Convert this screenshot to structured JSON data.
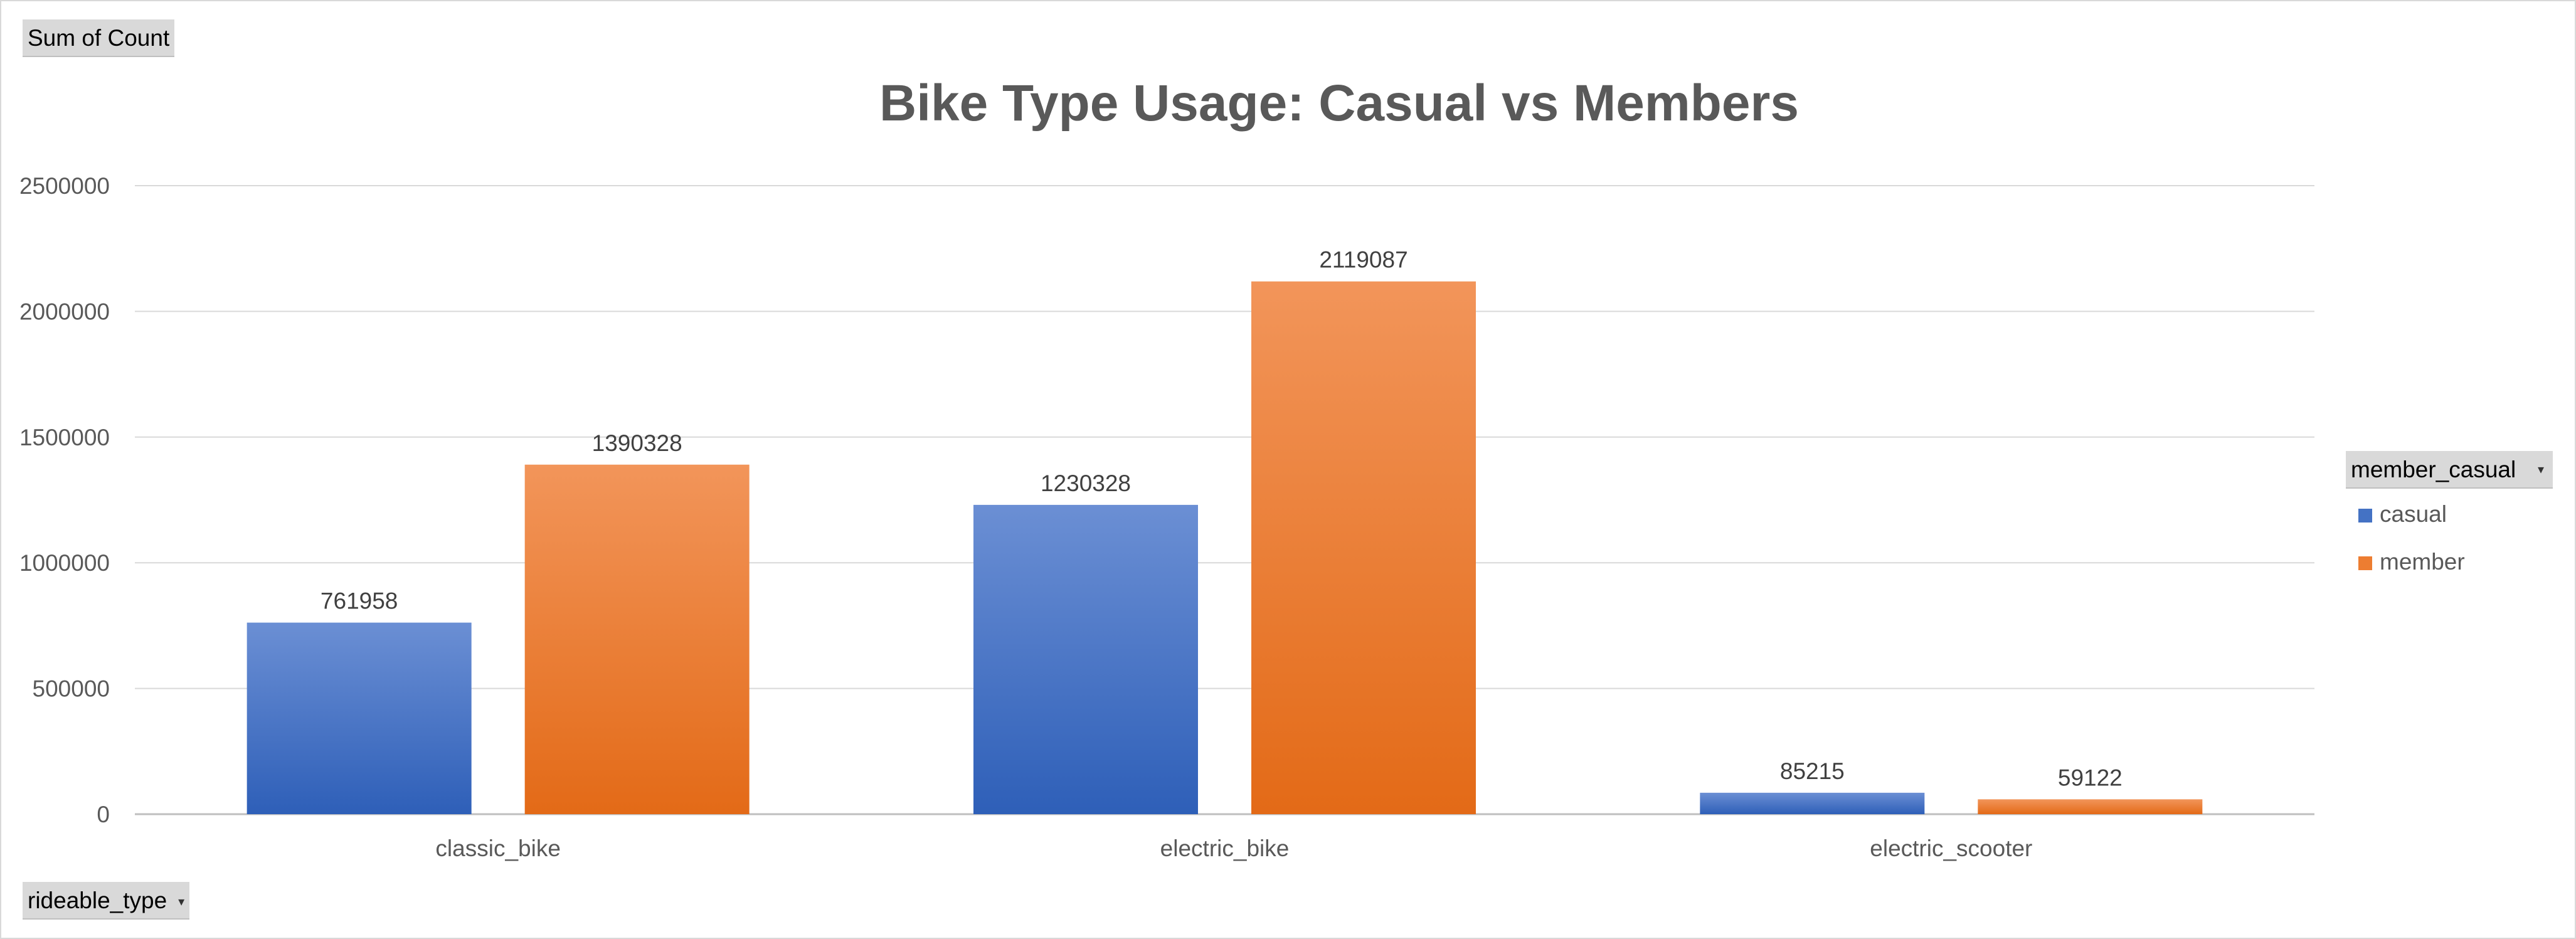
{
  "pivot": {
    "value_field": "Sum of Count",
    "axis_field": "rideable_type",
    "legend_field": "member_casual"
  },
  "colors": {
    "casual": "#4472c4",
    "member": "#ed7d31",
    "casual_light": "#6b8fd4",
    "casual_dark": "#2e5fb8",
    "member_light": "#f2955a",
    "member_dark": "#e36a17"
  },
  "chart_data": {
    "type": "bar",
    "title": "Bike Type Usage: Casual vs Members",
    "xlabel": "",
    "ylabel": "",
    "categories": [
      "classic_bike",
      "electric_bike",
      "electric_scooter"
    ],
    "series": [
      {
        "name": "casual",
        "values": [
          761958,
          1230328,
          85215
        ]
      },
      {
        "name": "member",
        "values": [
          1390328,
          2119087,
          59122
        ]
      }
    ],
    "ylim": [
      0,
      2500000
    ],
    "yticks": [
      0,
      500000,
      1000000,
      1500000,
      2000000,
      2500000
    ],
    "grid": true,
    "legend_position": "right",
    "data_labels": true
  }
}
